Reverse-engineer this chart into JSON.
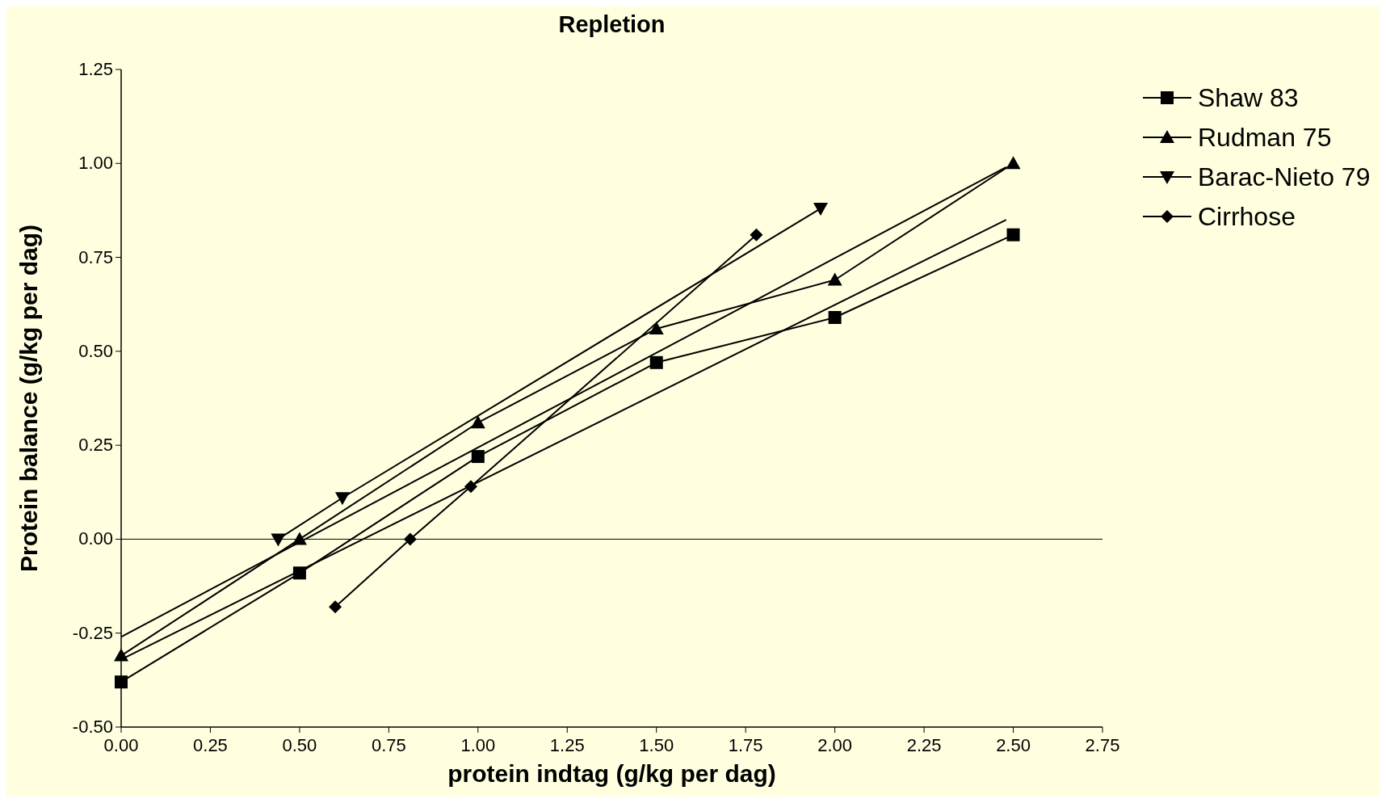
{
  "chart_data": {
    "type": "line",
    "title": "Repletion",
    "xlabel": "protein indtag (g/kg per dag)",
    "ylabel": "Protein balance (g/kg per dag)",
    "xlim": [
      0,
      2.75
    ],
    "xticks": [
      {
        "value": 0,
        "label": "0.00"
      },
      {
        "value": 0.25,
        "label": "0.25"
      },
      {
        "value": 0.5,
        "label": "0.50"
      },
      {
        "value": 0.75,
        "label": "0.75"
      },
      {
        "value": 1,
        "label": "1.00"
      },
      {
        "value": 1.25,
        "label": "1.25"
      },
      {
        "value": 1.5,
        "label": "1.50"
      },
      {
        "value": 1.75,
        "label": "1.75"
      },
      {
        "value": 2,
        "label": "2.00"
      },
      {
        "value": 2.25,
        "label": "2.25"
      },
      {
        "value": 2.5,
        "label": "2.50"
      },
      {
        "value": 2.75,
        "label": "2.75"
      }
    ],
    "ylim": [
      -0.5,
      1.25
    ],
    "yticks": [
      {
        "value": -0.5,
        "label": "-0.50"
      },
      {
        "value": -0.25,
        "label": "-0.25"
      },
      {
        "value": 0,
        "label": "0.00"
      },
      {
        "value": 0.25,
        "label": "0.25"
      },
      {
        "value": 0.5,
        "label": "0.50"
      },
      {
        "value": 0.75,
        "label": "0.75"
      },
      {
        "value": 1,
        "label": "1.00"
      },
      {
        "value": 1.25,
        "label": "1.25"
      }
    ],
    "grid": false,
    "legend": "top right",
    "line_style": "solid",
    "ref_lines": [
      {
        "axis": "y",
        "value": 0,
        "color": "#000000"
      }
    ],
    "series": [
      {
        "name": "Shaw 83",
        "color": "#000000",
        "marker": "square",
        "x": [
          0,
          0.5,
          1,
          1.5,
          2,
          2.5
        ],
        "values": [
          -0.38,
          -0.09,
          0.22,
          0.47,
          0.59,
          0.81
        ]
      },
      {
        "name": "Rudman 75",
        "color": "#000000",
        "marker": "triangle",
        "x": [
          0,
          0.5,
          1,
          1.5,
          2,
          2.5
        ],
        "values": [
          -0.31,
          0,
          0.31,
          0.56,
          0.69,
          1.0
        ]
      },
      {
        "name": "Barac-Nieto 79",
        "color": "#000000",
        "marker": "triangle-down",
        "x": [
          0.44,
          0.62,
          1.96
        ],
        "values": [
          0,
          0.11,
          0.88
        ]
      },
      {
        "name": "Cirrhose",
        "color": "#000000",
        "marker": "diamond",
        "x": [
          0.6,
          0.81,
          0.98,
          1.78
        ],
        "values": [
          -0.18,
          0,
          0.14,
          0.81
        ]
      },
      {
        "type": "line",
        "color": "#000000",
        "marker": "none",
        "x": [
          0,
          2.48
        ],
        "values": [
          -0.32,
          0.85
        ]
      },
      {
        "type": "line",
        "color": "#000000",
        "marker": "none",
        "x": [
          0,
          2.48
        ],
        "values": [
          -0.26,
          0.99
        ]
      }
    ]
  }
}
